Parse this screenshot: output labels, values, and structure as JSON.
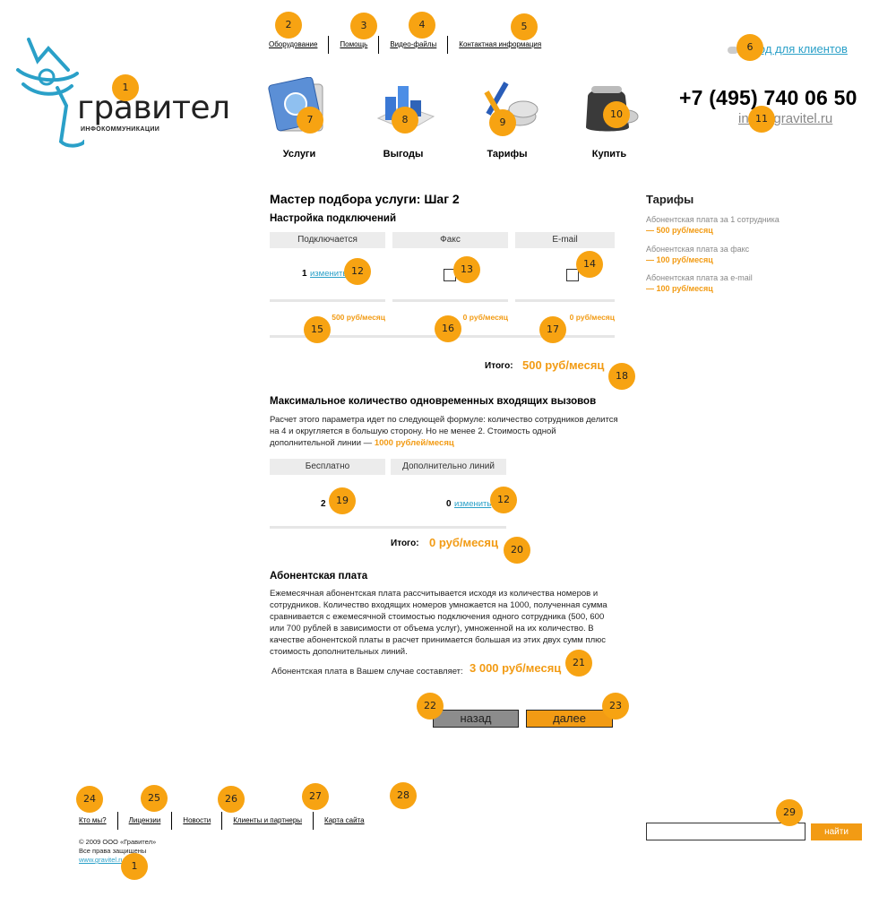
{
  "nav": {
    "items": [
      "Оборудование",
      "Помощь",
      "Видео-файлы",
      "Контактная информация"
    ]
  },
  "header": {
    "client_login": "Вход для клиентов",
    "phone": "+7 (495) 740 06 50",
    "email": "info@gravitel.ru"
  },
  "logo": {
    "word": "гравител",
    "subtitle": "ИНФОКОММУНИКАЦИИ"
  },
  "tiles": [
    {
      "label": "Услуги",
      "icon": "services-icon"
    },
    {
      "label": "Выгоды",
      "icon": "benefits-icon"
    },
    {
      "label": "Тарифы",
      "icon": "tariffs-icon"
    },
    {
      "label": "Купить",
      "icon": "buy-icon"
    }
  ],
  "wizard": {
    "title": "Мастер подбора услуги: Шаг 2",
    "connections": {
      "title": "Настройка подключений",
      "columns": [
        "Подключается",
        "Факс",
        "E-mail"
      ],
      "count": "1",
      "change_label": "изменить",
      "prices": [
        "500 руб/месяц",
        "0 руб/месяц",
        "0 руб/месяц"
      ],
      "total_label": "Итого:",
      "total_value": "500 руб/месяц"
    },
    "calls": {
      "title": "Максимальное количество одновременных входящих вызовов",
      "text": "Расчет этого параметра идет по следующей формуле: количество сотрудников делится на 4 и округляется в большую сторону. Но не менее 2. Стоимость одной дополнительной линии —",
      "line_price": "1000 рублей/месяц",
      "columns": [
        "Бесплатно",
        "Дополнительно линий"
      ],
      "free_count": "2",
      "extra_count": "0",
      "change_label": "изменить",
      "total_label": "Итого:",
      "total_value": "0 руб/месяц"
    },
    "fee": {
      "title": "Абонентская плата",
      "text": "Ежемесячная абонентская плата рассчитывается исходя из  количества номеров и сотрудников.  Количество входящих номеров умножается на 1000, полученная сумма сравнивается с ежемесячной  стоимостью подключения одного сотрудника (500, 600 или 700 рублей в зависимости от объема услуг), умноженной на их количество.  В качестве абонентской платы в расчет принимается большая из этих двух сумм плюс стоимость дополнительных линий.",
      "result_label": "Абонентская плата в Вашем случае  составляет:",
      "result_value": "3 000 руб/месяц"
    },
    "back_label": "назад",
    "next_label": "далее"
  },
  "sidebar": {
    "title": "Тарифы",
    "items": [
      {
        "label": "Абонентская плата за 1 сотрудника",
        "price": "— 500 руб/месяц"
      },
      {
        "label": "Абонентская плата за факс",
        "price": "— 100 руб/месяц"
      },
      {
        "label": "Абонентская плата за e-mail",
        "price": "— 100 руб/месяц"
      }
    ]
  },
  "footer": {
    "nav": [
      "Кто мы?",
      "Лицензии",
      "Новости",
      "Клиенты и партнеры",
      "Карта сайта"
    ],
    "copyright": "© 2009 ООО «Гравител»",
    "rights": "Все права защищены",
    "site": "www.gravitel.ru",
    "search_button": "найти"
  },
  "markers": [
    "1",
    "2",
    "3",
    "4",
    "5",
    "6",
    "7",
    "8",
    "9",
    "10",
    "11",
    "12",
    "13",
    "14",
    "15",
    "16",
    "17",
    "18",
    "12",
    "19",
    "20",
    "21",
    "22",
    "23",
    "24",
    "25",
    "26",
    "27",
    "28",
    "29",
    "1"
  ],
  "colors": {
    "accent": "#f29b14",
    "link": "#2aa0c8",
    "marker": "#f7a312"
  }
}
